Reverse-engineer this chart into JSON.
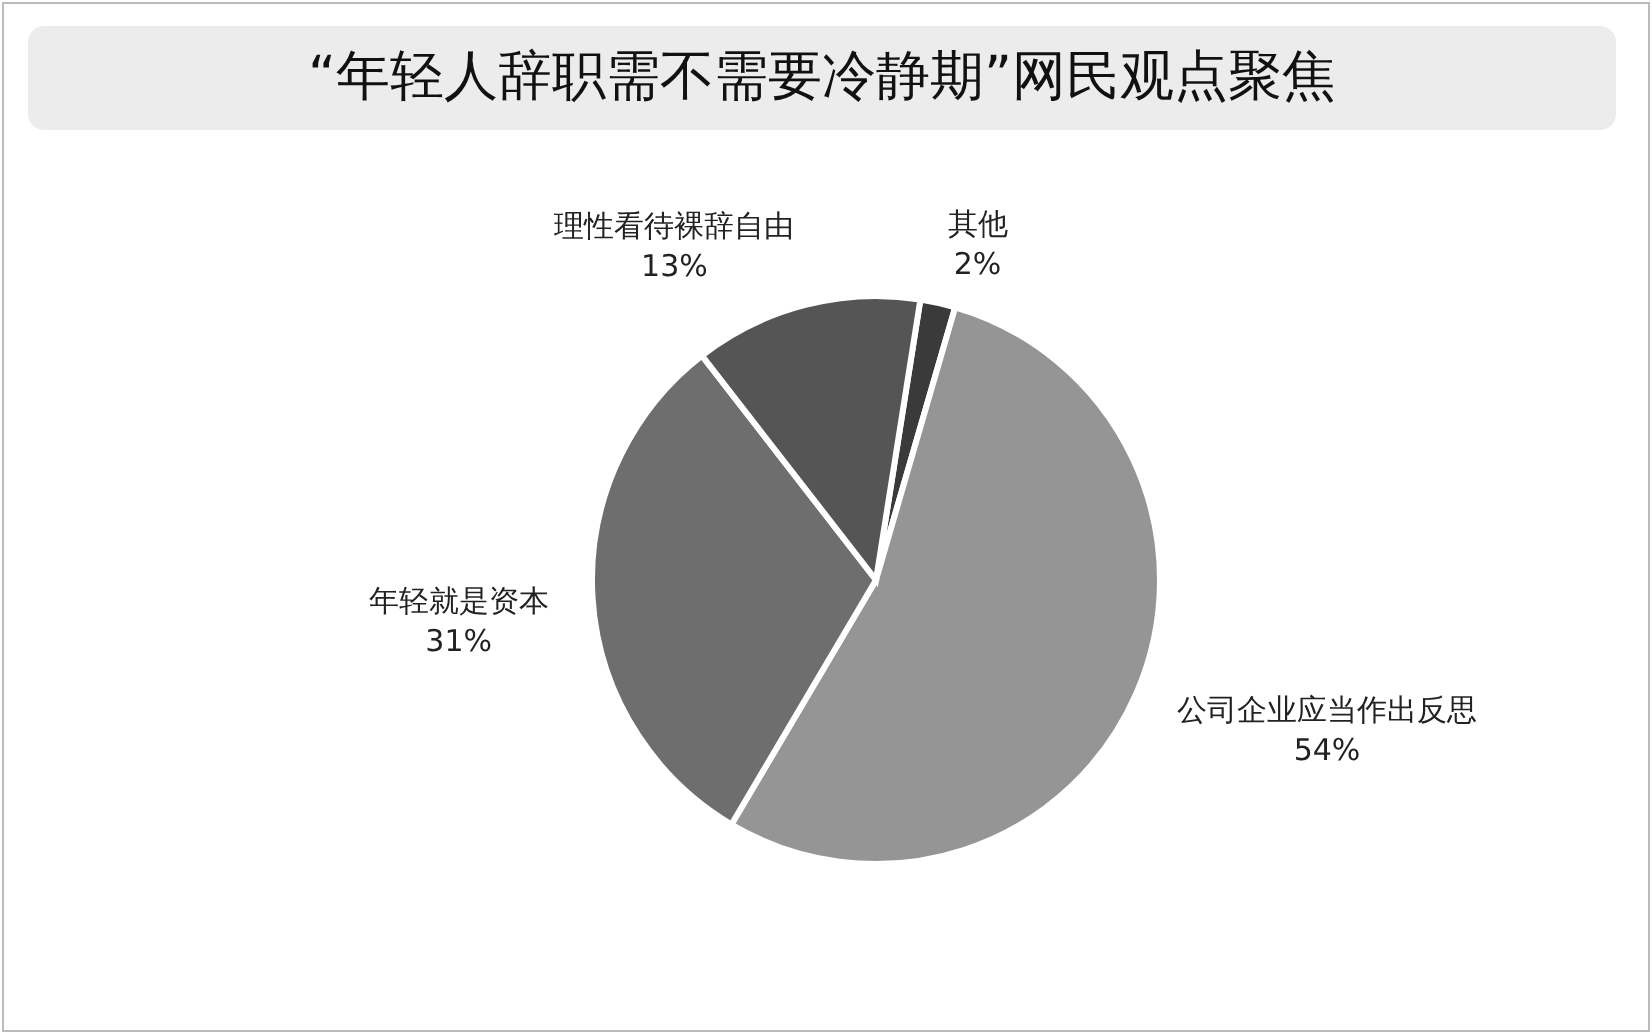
{
  "chart_data": {
    "type": "pie",
    "title": "“年轻人辞职需不需要冷静期”网民观点聚焦",
    "categories": [
      "其他",
      "公司企业应当作出反思",
      "年轻就是资本",
      "理性看待裸辞自由"
    ],
    "values": [
      2,
      54,
      31,
      13
    ],
    "value_labels": [
      "2%",
      "54%",
      "31%",
      "13%"
    ],
    "colors": [
      "#3a3a3a",
      "#959595",
      "#6e6e6e",
      "#555555"
    ]
  }
}
